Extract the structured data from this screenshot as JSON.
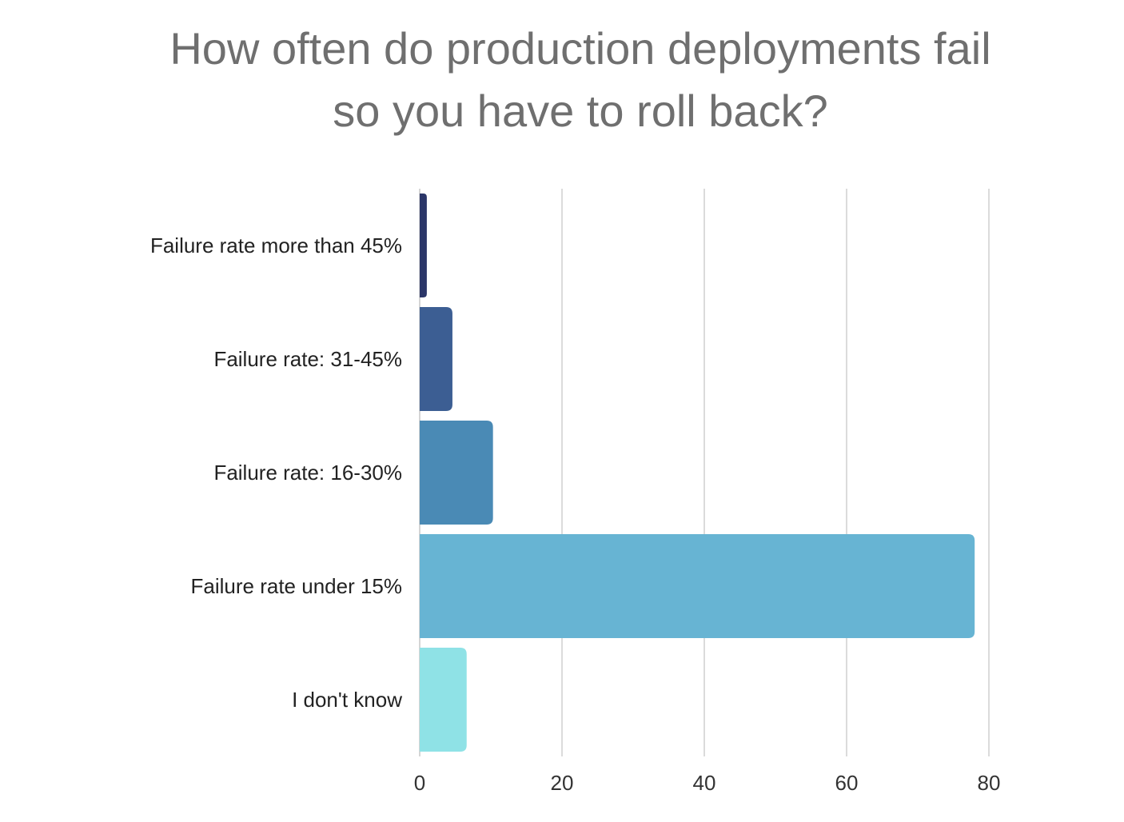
{
  "title_line1": "How often do production deployments fail",
  "title_line2": "so you have to roll back?",
  "chart_data": {
    "type": "bar",
    "orientation": "horizontal",
    "title": "How often do production deployments fail so you have to roll back?",
    "categories": [
      "Failure rate more than 45%",
      "Failure rate: 31-45%",
      "Failure rate: 16-30%",
      "Failure rate under 15%",
      "I don't know"
    ],
    "values": [
      1,
      4.6,
      10.3,
      78,
      6.6
    ],
    "colors": [
      "#2b3668",
      "#3c5e93",
      "#4a8ab5",
      "#67b4d3",
      "#8fe2e6"
    ],
    "xlim": [
      0,
      80
    ],
    "xticks": [
      0,
      20,
      40,
      60,
      80
    ],
    "xlabel": "",
    "ylabel": "",
    "grid": "vertical"
  }
}
